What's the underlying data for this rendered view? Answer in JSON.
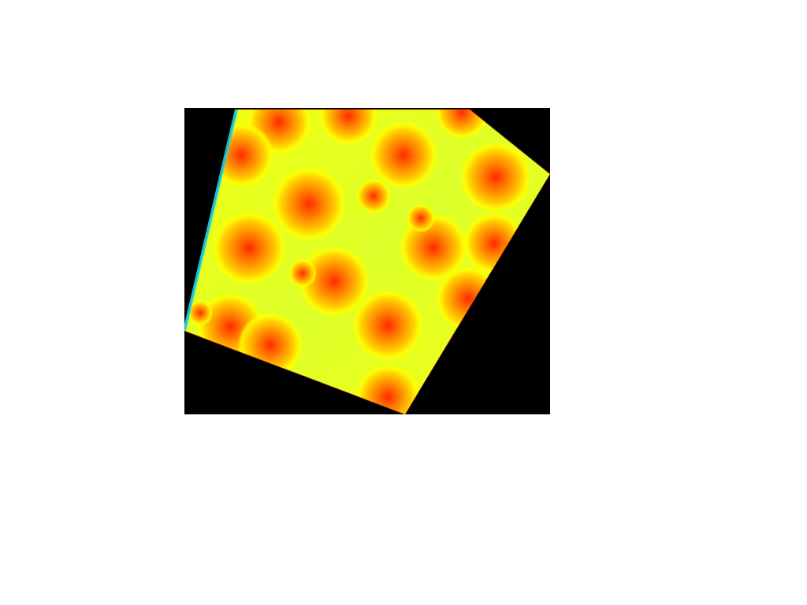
{
  "canvas": {
    "background_color": "#ffffff",
    "viewport_background_color": "#000000"
  },
  "visualization": {
    "kind": "density heatmap inside a pentagon",
    "colormap": [
      "#ff2a00",
      "#ff8c00",
      "#ffd200",
      "#ffff00",
      "#e6ff1a",
      "#c8ff3a",
      "#00e5ff"
    ],
    "edge_color": "#00e5ff",
    "hotspot_count": 20
  }
}
